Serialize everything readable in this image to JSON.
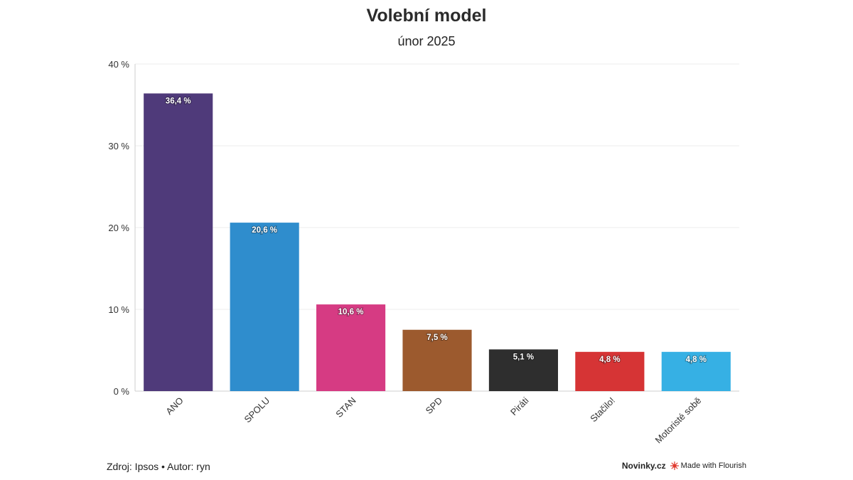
{
  "header": {
    "title": "Volební model",
    "subtitle": "únor 2025"
  },
  "footer": {
    "source": "Zdroj: Ipsos • Autor: ryn",
    "brand": "Novinky.cz",
    "credit": "Made with Flourish"
  },
  "chart_data": {
    "type": "bar",
    "title": "Volební model",
    "subtitle": "únor 2025",
    "categories": [
      "ANO",
      "SPOLU",
      "STAN",
      "SPD",
      "Piráti",
      "Stačilo!",
      "Motoristé sobě"
    ],
    "values": [
      36.4,
      20.6,
      10.6,
      7.5,
      5.1,
      4.8,
      4.8
    ],
    "value_labels": [
      "36,4 %",
      "20,6 %",
      "10,6 %",
      "7,5 %",
      "5,1 %",
      "4,8 %",
      "4,8 %"
    ],
    "colors": [
      "#4f3a7a",
      "#2f8dcd",
      "#d63b83",
      "#9c5a2e",
      "#2e2e2e",
      "#d63435",
      "#36b0e4"
    ],
    "ylim": [
      0,
      40
    ],
    "yticks": [
      0,
      10,
      20,
      30,
      40
    ],
    "ytick_labels": [
      "0 %",
      "10 %",
      "20 %",
      "30 %",
      "40 %"
    ],
    "xlabel": "",
    "ylabel": "",
    "grid": true,
    "legend": "none"
  }
}
